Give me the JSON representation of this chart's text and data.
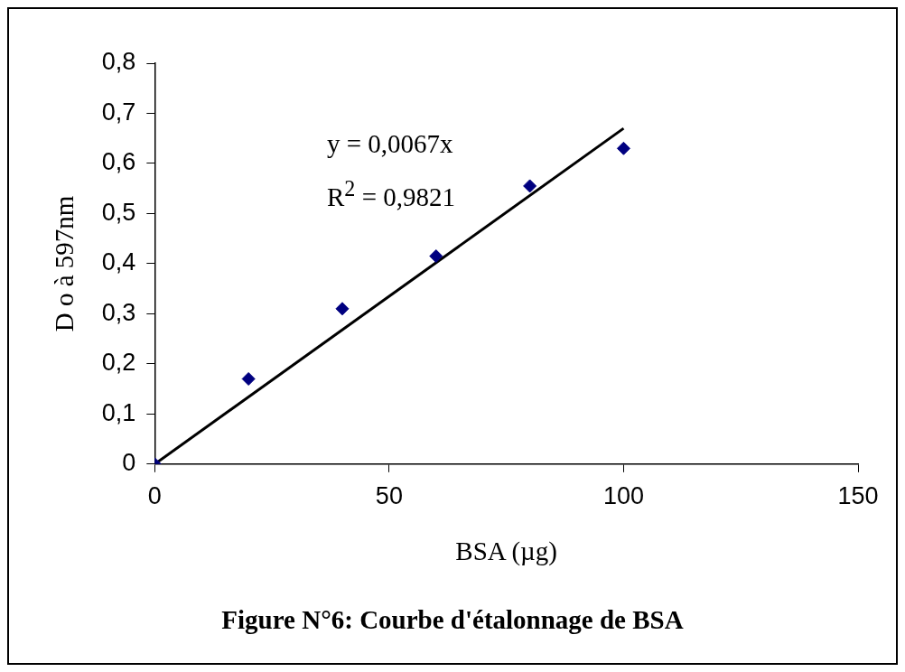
{
  "chart_data": {
    "type": "scatter",
    "title": "Figure N°6: Courbe d'étalonnage de BSA",
    "xlabel": "BSA (µg)",
    "ylabel": "D o à 597nm",
    "x": [
      0,
      20,
      40,
      60,
      80,
      100
    ],
    "series": [
      {
        "type": "scatter",
        "color": "#000080",
        "marker": "diamond",
        "values": [
          0,
          0.17,
          0.31,
          0.415,
          0.555,
          0.63
        ]
      },
      {
        "type": "line",
        "color": "#000000",
        "x": [
          0,
          100
        ],
        "values": [
          0,
          0.67
        ],
        "marker": "none"
      }
    ],
    "annotations": [
      "y = 0,0067x",
      "R$^{2}$ = 0,9821"
    ],
    "xlim": [
      0,
      150
    ],
    "xticks": [
      0,
      50,
      100,
      150
    ],
    "ylim": [
      0,
      0.8
    ],
    "yticks": [
      0,
      {
        "value": 0.1,
        "label": "0,1"
      },
      {
        "value": 0.2,
        "label": "0,2"
      },
      {
        "value": 0.3,
        "label": "0,3"
      },
      {
        "value": 0.4,
        "label": "0,4"
      },
      {
        "value": 0.5,
        "label": "0,5"
      },
      {
        "value": 0.6,
        "label": "0,6"
      },
      {
        "value": 0.7,
        "label": "0,7"
      },
      {
        "value": 0.8,
        "label": "0,8"
      }
    ],
    "grid": false,
    "legend": false
  }
}
